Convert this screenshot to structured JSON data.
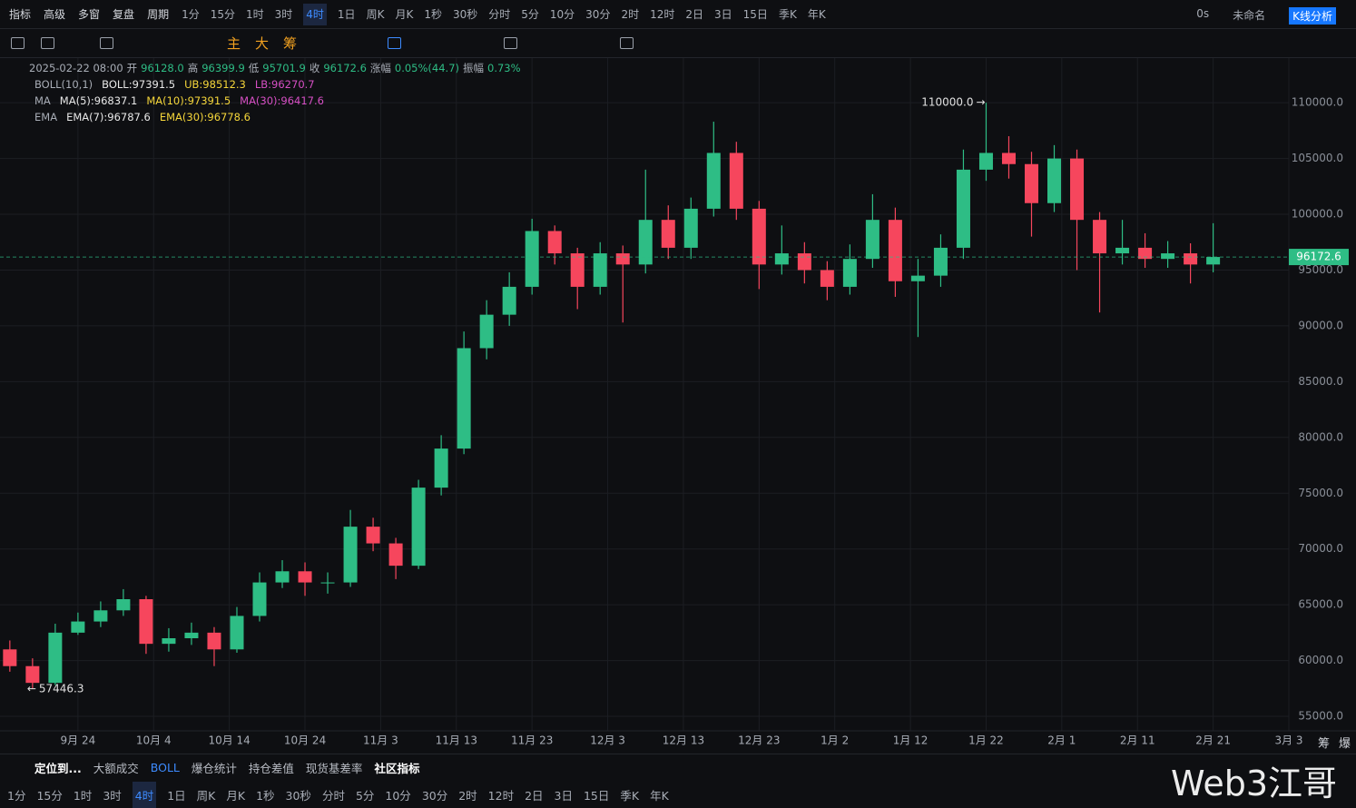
{
  "toolbar": {
    "left": [
      "指标",
      "高级",
      "多窗",
      "复盘",
      "周期"
    ],
    "timeframes": [
      "1分",
      "15分",
      "1时",
      "3时",
      "4时",
      "1日",
      "周K",
      "月K",
      "1秒",
      "30秒",
      "分时",
      "5分",
      "10分",
      "30分",
      "2时",
      "12时",
      "2日",
      "3日",
      "15日",
      "季K",
      "年K"
    ],
    "right": [
      "0s",
      "未命名",
      "K线分析"
    ]
  },
  "drawbar": {
    "marks": [
      "主",
      "大",
      "筹"
    ]
  },
  "info": [
    "2025-02-22 08:00",
    "开",
    "96128.0",
    "高",
    "96399.9",
    "低",
    "95701.9",
    "收",
    "96172.6",
    "涨幅",
    "0.05%(44.7)",
    "振幅",
    "0.73%"
  ],
  "indicators": [
    {
      "name": "BOLL(10,1)",
      "values": [
        "BOLL:97391.5",
        "UB:98512.3",
        "LB:96270.7"
      ]
    },
    {
      "name": "MA",
      "values": [
        "MA(5):96837.1",
        "MA(10):97391.5",
        "MA(30):96417.6"
      ]
    },
    {
      "name": "EMA",
      "values": [
        "EMA(7):96787.6",
        "EMA(30):96778.6"
      ]
    }
  ],
  "chart_data": {
    "type": "candlestick",
    "up_color": "#2ebd85",
    "down_color": "#f6465d",
    "grid": true,
    "x": [
      -9,
      -6,
      -3,
      0,
      3,
      6,
      9,
      12,
      15,
      18,
      21,
      24,
      27,
      30,
      33,
      36,
      39,
      42,
      45,
      48,
      51,
      54,
      57,
      60,
      63,
      66,
      69,
      72,
      75,
      78,
      81,
      84,
      87,
      90,
      93,
      96,
      99,
      102,
      105,
      108,
      111,
      114,
      117,
      120,
      123,
      126,
      129,
      132,
      135,
      138,
      141,
      144,
      147,
      150
    ],
    "opens": [
      61000,
      59500,
      58000,
      62500,
      63500,
      64500,
      65500,
      61500,
      62000,
      62500,
      61000,
      64000,
      67000,
      68000,
      67000,
      67000,
      72000,
      70500,
      68500,
      75500,
      79000,
      88000,
      91000,
      93500,
      98500,
      96500,
      93500,
      96500,
      95500,
      99500,
      97000,
      100500,
      105500,
      100500,
      95500,
      96500,
      95000,
      93500,
      96000,
      99500,
      94000,
      94500,
      97000,
      104000,
      105500,
      104500,
      101000,
      105000,
      99500,
      96500,
      97000,
      96000,
      96500,
      95500
    ],
    "highs": [
      61800,
      60200,
      63300,
      64300,
      65300,
      66400,
      65800,
      62900,
      63400,
      63000,
      64800,
      67900,
      69000,
      68800,
      67900,
      73500,
      72800,
      71000,
      76200,
      80200,
      89500,
      92300,
      94800,
      99600,
      99000,
      97000,
      97500,
      97200,
      104000,
      100800,
      101500,
      108300,
      106500,
      101200,
      99000,
      97500,
      95800,
      97300,
      101800,
      100600,
      96000,
      98200,
      105800,
      110000,
      107000,
      105600,
      106200,
      105800,
      100200,
      99500,
      98300,
      97600,
      97400,
      99200
    ],
    "lows": [
      59000,
      57446.3,
      57800,
      62300,
      63000,
      64000,
      60600,
      60800,
      61400,
      59500,
      60700,
      63500,
      66500,
      65800,
      66000,
      66600,
      69800,
      67300,
      68200,
      74800,
      78500,
      87000,
      90000,
      92800,
      95500,
      91500,
      92800,
      90300,
      94700,
      96000,
      96000,
      99800,
      99500,
      93300,
      94600,
      93800,
      92300,
      92800,
      95200,
      92600,
      89000,
      93500,
      96000,
      103000,
      103200,
      98000,
      100200,
      95000,
      91200,
      95500,
      95200,
      95200,
      93800,
      94800
    ],
    "closes": [
      59500,
      58000,
      62500,
      63500,
      64500,
      65500,
      61500,
      62000,
      62500,
      61000,
      64000,
      67000,
      68000,
      67000,
      67000,
      72000,
      70500,
      68500,
      75500,
      79000,
      88000,
      91000,
      93500,
      98500,
      96500,
      93500,
      96500,
      95500,
      99500,
      97000,
      100500,
      105500,
      100500,
      95500,
      96500,
      95000,
      93500,
      96000,
      99500,
      94000,
      94500,
      97000,
      104000,
      105500,
      104500,
      101000,
      105000,
      99500,
      96500,
      97000,
      96000,
      96500,
      95500,
      96172.6
    ],
    "xlim": [
      -10.3,
      160
    ],
    "xticks": [
      {
        "value": 0,
        "label": "9月 24"
      },
      {
        "value": 10,
        "label": "10月 4"
      },
      {
        "value": 20,
        "label": "10月 14"
      },
      {
        "value": 30,
        "label": "10月 24"
      },
      {
        "value": 40,
        "label": "11月 3"
      },
      {
        "value": 50,
        "label": "11月 13"
      },
      {
        "value": 60,
        "label": "11月 23"
      },
      {
        "value": 70,
        "label": "12月 3"
      },
      {
        "value": 80,
        "label": "12月 13"
      },
      {
        "value": 90,
        "label": "12月 23"
      },
      {
        "value": 100,
        "label": "1月 2"
      },
      {
        "value": 110,
        "label": "1月 12"
      },
      {
        "value": 120,
        "label": "1月 22"
      },
      {
        "value": 130,
        "label": "2月 1"
      },
      {
        "value": 140,
        "label": "2月 11"
      },
      {
        "value": 150,
        "label": "2月 21"
      },
      {
        "value": 160,
        "label": "3月 3"
      }
    ],
    "ylim": [
      53700,
      114000
    ],
    "yticks": [
      {
        "value": 55000,
        "label": "55000.0"
      },
      {
        "value": 60000,
        "label": "60000.0"
      },
      {
        "value": 65000,
        "label": "65000.0"
      },
      {
        "value": 70000,
        "label": "70000.0"
      },
      {
        "value": 75000,
        "label": "75000.0"
      },
      {
        "value": 80000,
        "label": "80000.0"
      },
      {
        "value": 85000,
        "label": "85000.0"
      },
      {
        "value": 90000,
        "label": "90000.0"
      },
      {
        "value": 95000,
        "label": "95000.0"
      },
      {
        "value": 100000,
        "label": "100000.0"
      },
      {
        "value": 105000,
        "label": "105000.0"
      },
      {
        "value": 110000,
        "label": "110000.0"
      }
    ],
    "max_label": {
      "value": 110000,
      "label": "110000.0"
    },
    "min_label": 57446.3,
    "last_price": 96172.6
  },
  "bottom": {
    "tabs": [
      "定位到...",
      "大额成交",
      "BOLL",
      "爆仓统计",
      "持仓差值",
      "现货基差率",
      "社区指标"
    ],
    "timeframes": [
      "1分",
      "15分",
      "1时",
      "3时",
      "4时",
      "1日",
      "周K",
      "月K",
      "1秒",
      "30秒",
      "分时",
      "5分",
      "10分",
      "30分",
      "2时",
      "12时",
      "2日",
      "3日",
      "15日",
      "季K",
      "年K"
    ],
    "corner": [
      "筹",
      "爆"
    ]
  },
  "watermark": "Web3江哥"
}
